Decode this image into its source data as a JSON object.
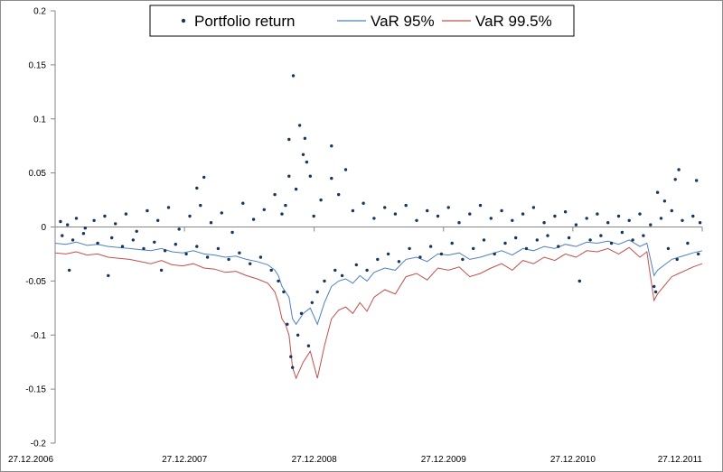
{
  "chart_data": {
    "type": "scatter",
    "title": "",
    "xlabel": "",
    "ylabel": "",
    "ylim": [
      -0.2,
      0.2
    ],
    "yticks": [
      -0.2,
      -0.15,
      -0.1,
      -0.05,
      0,
      0.05,
      0.1,
      0.15,
      0.2
    ],
    "ytick_labels": [
      "-0.2",
      "-0.15",
      "-0.1",
      "-0.05",
      "0",
      "0.05",
      "0.1",
      "0.15",
      "0.2"
    ],
    "xlim_days": [
      0,
      1826
    ],
    "xticks_days": [
      0,
      365,
      731,
      1096,
      1461,
      1826
    ],
    "xtick_labels": [
      "27.12.2006",
      "27.12.2007",
      "27.12.2008",
      "27.12.2009",
      "27.12.2010",
      "27.12.2011"
    ],
    "legend": {
      "position": "top-center",
      "entries": [
        "Portfolio return",
        "VaR 95%",
        "VaR 99.5%"
      ]
    },
    "colors": {
      "returns": "#17365d",
      "var95": "#4f81bd",
      "var995": "#c0504d",
      "axis": "#868686"
    },
    "series": [
      {
        "name": "VaR 95%",
        "kind": "line",
        "x": [
          0,
          30,
          60,
          90,
          120,
          150,
          180,
          210,
          240,
          270,
          300,
          330,
          360,
          390,
          420,
          450,
          480,
          510,
          540,
          570,
          600,
          620,
          630,
          640,
          650,
          660,
          670,
          680,
          700,
          720,
          740,
          760,
          780,
          800,
          820,
          840,
          860,
          880,
          900,
          930,
          960,
          990,
          1020,
          1050,
          1080,
          1110,
          1140,
          1170,
          1200,
          1230,
          1260,
          1290,
          1320,
          1350,
          1380,
          1410,
          1440,
          1470,
          1500,
          1530,
          1560,
          1590,
          1620,
          1650,
          1670,
          1680,
          1690,
          1700,
          1720,
          1740,
          1760,
          1780,
          1800,
          1826
        ],
        "values": [
          -0.015,
          -0.016,
          -0.014,
          -0.017,
          -0.016,
          -0.018,
          -0.019,
          -0.02,
          -0.021,
          -0.022,
          -0.02,
          -0.023,
          -0.024,
          -0.022,
          -0.025,
          -0.026,
          -0.028,
          -0.027,
          -0.03,
          -0.032,
          -0.035,
          -0.04,
          -0.045,
          -0.055,
          -0.06,
          -0.065,
          -0.085,
          -0.09,
          -0.08,
          -0.075,
          -0.09,
          -0.07,
          -0.055,
          -0.05,
          -0.048,
          -0.052,
          -0.045,
          -0.05,
          -0.042,
          -0.038,
          -0.04,
          -0.03,
          -0.028,
          -0.032,
          -0.025,
          -0.026,
          -0.024,
          -0.03,
          -0.028,
          -0.025,
          -0.022,
          -0.026,
          -0.02,
          -0.022,
          -0.018,
          -0.02,
          -0.016,
          -0.018,
          -0.014,
          -0.015,
          -0.013,
          -0.016,
          -0.012,
          -0.018,
          -0.015,
          -0.03,
          -0.045,
          -0.04,
          -0.035,
          -0.03,
          -0.028,
          -0.026,
          -0.024,
          -0.022
        ]
      },
      {
        "name": "VaR 99.5%",
        "kind": "line",
        "x": [
          0,
          30,
          60,
          90,
          120,
          150,
          180,
          210,
          240,
          270,
          300,
          330,
          360,
          390,
          420,
          450,
          480,
          510,
          540,
          570,
          600,
          620,
          630,
          640,
          650,
          660,
          670,
          680,
          700,
          720,
          740,
          760,
          780,
          800,
          820,
          840,
          860,
          880,
          900,
          930,
          960,
          990,
          1020,
          1050,
          1080,
          1110,
          1140,
          1170,
          1200,
          1230,
          1260,
          1290,
          1320,
          1350,
          1380,
          1410,
          1440,
          1470,
          1500,
          1530,
          1560,
          1590,
          1620,
          1650,
          1670,
          1680,
          1690,
          1700,
          1720,
          1740,
          1760,
          1780,
          1800,
          1826
        ],
        "values": [
          -0.024,
          -0.025,
          -0.023,
          -0.026,
          -0.025,
          -0.028,
          -0.029,
          -0.03,
          -0.032,
          -0.034,
          -0.031,
          -0.035,
          -0.036,
          -0.034,
          -0.038,
          -0.039,
          -0.042,
          -0.041,
          -0.045,
          -0.048,
          -0.052,
          -0.06,
          -0.07,
          -0.085,
          -0.09,
          -0.1,
          -0.13,
          -0.14,
          -0.125,
          -0.115,
          -0.14,
          -0.11,
          -0.085,
          -0.077,
          -0.074,
          -0.08,
          -0.07,
          -0.078,
          -0.065,
          -0.058,
          -0.062,
          -0.046,
          -0.043,
          -0.049,
          -0.038,
          -0.04,
          -0.037,
          -0.046,
          -0.043,
          -0.038,
          -0.034,
          -0.04,
          -0.031,
          -0.034,
          -0.028,
          -0.031,
          -0.025,
          -0.028,
          -0.022,
          -0.023,
          -0.02,
          -0.025,
          -0.019,
          -0.028,
          -0.023,
          -0.046,
          -0.068,
          -0.062,
          -0.054,
          -0.046,
          -0.043,
          -0.04,
          -0.037,
          -0.034
        ]
      },
      {
        "name": "Portfolio return",
        "kind": "scatter",
        "points": [
          [
            672,
            0.14
          ],
          [
            690,
            0.094
          ],
          [
            660,
            0.081
          ],
          [
            705,
            0.082
          ],
          [
            780,
            0.075
          ],
          [
            700,
            0.067
          ],
          [
            710,
            0.06
          ],
          [
            820,
            0.053
          ],
          [
            1760,
            0.053
          ],
          [
            660,
            0.047
          ],
          [
            720,
            0.047
          ],
          [
            780,
            0.045
          ],
          [
            1750,
            0.044
          ],
          [
            1810,
            0.043
          ],
          [
            420,
            0.046
          ],
          [
            400,
            0.036
          ],
          [
            1700,
            0.032
          ],
          [
            1720,
            0.024
          ],
          [
            15,
            0.005
          ],
          [
            35,
            0.002
          ],
          [
            60,
            0.008
          ],
          [
            85,
            -0.001
          ],
          [
            110,
            0.006
          ],
          [
            140,
            0.01
          ],
          [
            170,
            0.003
          ],
          [
            200,
            0.012
          ],
          [
            230,
            -0.004
          ],
          [
            260,
            0.015
          ],
          [
            290,
            0.006
          ],
          [
            320,
            0.018
          ],
          [
            350,
            -0.002
          ],
          [
            380,
            0.01
          ],
          [
            410,
            0.02
          ],
          [
            440,
            0.004
          ],
          [
            470,
            0.013
          ],
          [
            500,
            -0.005
          ],
          [
            530,
            0.022
          ],
          [
            560,
            0.007
          ],
          [
            590,
            0.016
          ],
          [
            620,
            0.03
          ],
          [
            640,
            0.012
          ],
          [
            650,
            0.02
          ],
          [
            680,
            0.035
          ],
          [
            730,
            0.01
          ],
          [
            750,
            0.025
          ],
          [
            800,
            0.03
          ],
          [
            840,
            0.015
          ],
          [
            870,
            0.022
          ],
          [
            900,
            0.008
          ],
          [
            930,
            0.018
          ],
          [
            960,
            0.012
          ],
          [
            990,
            0.02
          ],
          [
            1020,
            0.006
          ],
          [
            1050,
            0.015
          ],
          [
            1080,
            0.01
          ],
          [
            1110,
            0.018
          ],
          [
            1140,
            0.004
          ],
          [
            1170,
            0.012
          ],
          [
            1200,
            0.02
          ],
          [
            1230,
            0.008
          ],
          [
            1260,
            0.015
          ],
          [
            1290,
            0.006
          ],
          [
            1320,
            0.012
          ],
          [
            1350,
            0.018
          ],
          [
            1380,
            0.004
          ],
          [
            1410,
            0.01
          ],
          [
            1440,
            0.014
          ],
          [
            1470,
            0.002
          ],
          [
            1500,
            0.008
          ],
          [
            1530,
            0.012
          ],
          [
            1560,
            0.004
          ],
          [
            1590,
            0.01
          ],
          [
            1620,
            0.006
          ],
          [
            1650,
            0.012
          ],
          [
            1680,
            0.002
          ],
          [
            1710,
            0.008
          ],
          [
            1740,
            0.015
          ],
          [
            1770,
            0.006
          ],
          [
            1800,
            0.01
          ],
          [
            1820,
            0.004
          ],
          [
            20,
            -0.008
          ],
          [
            50,
            -0.012
          ],
          [
            80,
            -0.006
          ],
          [
            120,
            -0.015
          ],
          [
            160,
            -0.01
          ],
          [
            190,
            -0.018
          ],
          [
            220,
            -0.012
          ],
          [
            250,
            -0.02
          ],
          [
            280,
            -0.014
          ],
          [
            310,
            -0.022
          ],
          [
            340,
            -0.016
          ],
          [
            370,
            -0.025
          ],
          [
            400,
            -0.018
          ],
          [
            430,
            -0.028
          ],
          [
            460,
            -0.02
          ],
          [
            490,
            -0.03
          ],
          [
            520,
            -0.024
          ],
          [
            550,
            -0.034
          ],
          [
            580,
            -0.028
          ],
          [
            610,
            -0.04
          ],
          [
            630,
            -0.05
          ],
          [
            645,
            -0.06
          ],
          [
            655,
            -0.09
          ],
          [
            665,
            -0.12
          ],
          [
            670,
            -0.13
          ],
          [
            685,
            -0.1
          ],
          [
            695,
            -0.08
          ],
          [
            715,
            -0.11
          ],
          [
            725,
            -0.07
          ],
          [
            740,
            -0.06
          ],
          [
            760,
            -0.05
          ],
          [
            790,
            -0.04
          ],
          [
            810,
            -0.045
          ],
          [
            850,
            -0.035
          ],
          [
            880,
            -0.04
          ],
          [
            910,
            -0.03
          ],
          [
            940,
            -0.025
          ],
          [
            970,
            -0.032
          ],
          [
            1000,
            -0.02
          ],
          [
            1030,
            -0.028
          ],
          [
            1060,
            -0.018
          ],
          [
            1090,
            -0.025
          ],
          [
            1120,
            -0.015
          ],
          [
            1150,
            -0.03
          ],
          [
            1180,
            -0.02
          ],
          [
            1210,
            -0.012
          ],
          [
            1240,
            -0.025
          ],
          [
            1270,
            -0.015
          ],
          [
            1300,
            -0.01
          ],
          [
            1330,
            -0.02
          ],
          [
            1360,
            -0.012
          ],
          [
            1390,
            -0.008
          ],
          [
            1420,
            -0.018
          ],
          [
            1450,
            -0.01
          ],
          [
            1480,
            -0.05
          ],
          [
            1510,
            -0.012
          ],
          [
            1540,
            -0.008
          ],
          [
            1570,
            -0.015
          ],
          [
            1600,
            -0.005
          ],
          [
            1630,
            -0.012
          ],
          [
            1660,
            -0.008
          ],
          [
            1690,
            -0.055
          ],
          [
            1695,
            -0.06
          ],
          [
            1730,
            -0.02
          ],
          [
            1755,
            -0.03
          ],
          [
            1785,
            -0.015
          ],
          [
            1815,
            -0.025
          ],
          [
            40,
            -0.04
          ],
          [
            150,
            -0.045
          ],
          [
            300,
            -0.04
          ],
          [
            1480,
            -0.05
          ]
        ]
      }
    ]
  }
}
